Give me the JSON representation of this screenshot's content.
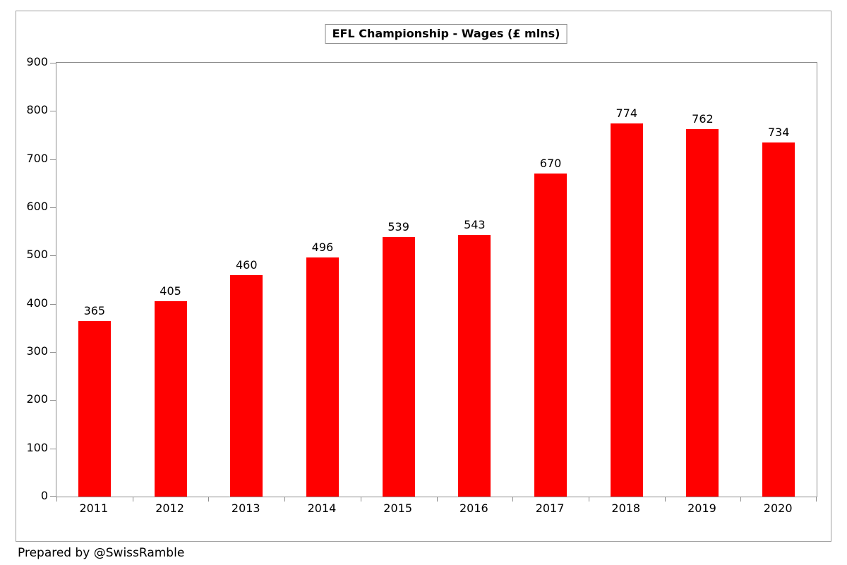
{
  "chart_data": {
    "type": "bar",
    "title": "EFL Championship - Wages (£ mlns)",
    "categories": [
      "2011",
      "2012",
      "2013",
      "2014",
      "2015",
      "2016",
      "2017",
      "2018",
      "2019",
      "2020"
    ],
    "values": [
      365,
      405,
      460,
      496,
      539,
      543,
      670,
      774,
      762,
      734
    ],
    "xlabel": "",
    "ylabel": "",
    "ylim": [
      0,
      900
    ],
    "ytick_interval": 100,
    "yticks": [
      900,
      800,
      700,
      600,
      500,
      400,
      300,
      200,
      100,
      0
    ],
    "bar_color": "#ff0000",
    "grid": false,
    "legend": "none",
    "data_labels": true
  },
  "footer": {
    "credit": "Prepared by @SwissRamble"
  }
}
